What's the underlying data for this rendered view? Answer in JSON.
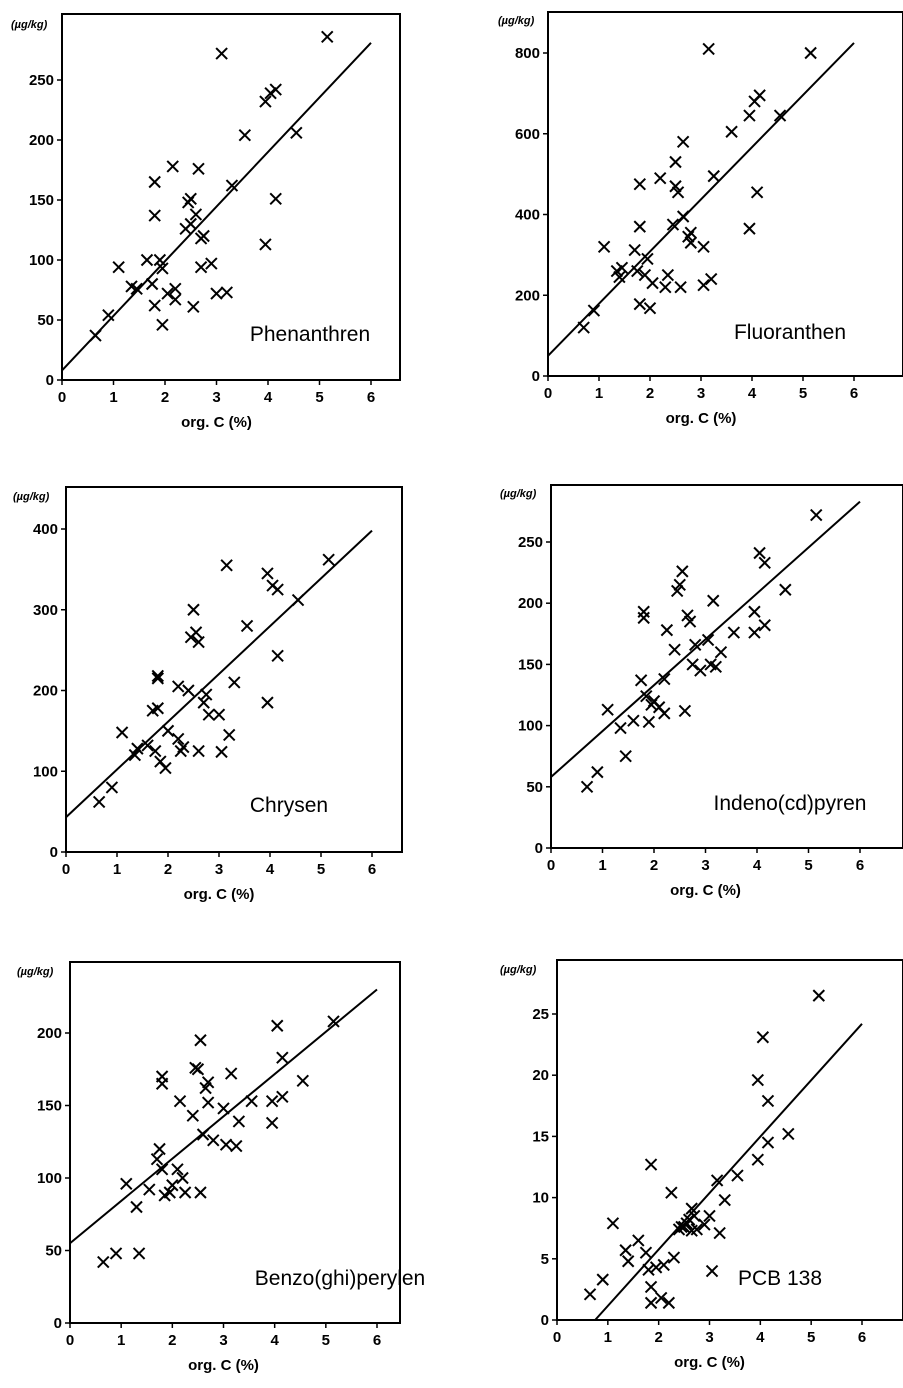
{
  "chart_data": [
    {
      "type": "scatter",
      "title": "Phenanthren",
      "unit": "(µg/kg)",
      "xlabel": "org. C (%)",
      "xticks": [
        0,
        1,
        2,
        3,
        4,
        5,
        6
      ],
      "yticks": [
        0,
        50,
        100,
        150,
        200,
        250
      ],
      "xlim": [
        0,
        7
      ],
      "ylim": [
        0,
        290
      ],
      "trend_line": {
        "x": [
          0,
          6
        ],
        "y": [
          8,
          281
        ]
      },
      "points": [
        [
          0.65,
          37
        ],
        [
          0.9,
          54
        ],
        [
          1.1,
          94
        ],
        [
          1.35,
          78
        ],
        [
          1.45,
          76
        ],
        [
          1.65,
          100
        ],
        [
          1.8,
          165
        ],
        [
          1.8,
          137
        ],
        [
          1.75,
          80
        ],
        [
          1.8,
          62
        ],
        [
          1.9,
          100
        ],
        [
          1.95,
          93
        ],
        [
          1.95,
          46
        ],
        [
          2.05,
          72
        ],
        [
          2.15,
          178
        ],
        [
          2.2,
          76
        ],
        [
          2.2,
          67
        ],
        [
          2.4,
          126
        ],
        [
          2.45,
          148
        ],
        [
          2.5,
          151
        ],
        [
          2.5,
          130
        ],
        [
          2.55,
          61
        ],
        [
          2.6,
          138
        ],
        [
          2.65,
          176
        ],
        [
          2.7,
          118
        ],
        [
          2.7,
          94
        ],
        [
          2.75,
          120
        ],
        [
          2.9,
          97
        ],
        [
          3.0,
          72
        ],
        [
          3.1,
          272
        ],
        [
          3.2,
          73
        ],
        [
          3.3,
          162
        ],
        [
          3.55,
          204
        ],
        [
          3.95,
          113
        ],
        [
          3.95,
          232
        ],
        [
          4.05,
          239
        ],
        [
          4.15,
          242
        ],
        [
          4.15,
          151
        ],
        [
          4.55,
          206
        ],
        [
          5.15,
          286
        ]
      ]
    },
    {
      "type": "scatter",
      "title": "Fluoranthen",
      "unit": "(µg/kg)",
      "xlabel": "org. C (%)",
      "xticks": [
        0,
        1,
        2,
        3,
        4,
        5,
        6
      ],
      "yticks": [
        0,
        200,
        400,
        600,
        800
      ],
      "xlim": [
        0,
        7
      ],
      "ylim": [
        0,
        880
      ],
      "trend_line": {
        "x": [
          0,
          6
        ],
        "y": [
          50,
          825
        ]
      },
      "points": [
        [
          0.7,
          120
        ],
        [
          0.9,
          162
        ],
        [
          1.1,
          320
        ],
        [
          1.35,
          260
        ],
        [
          1.4,
          245
        ],
        [
          1.45,
          268
        ],
        [
          1.7,
          312
        ],
        [
          1.75,
          260
        ],
        [
          1.8,
          475
        ],
        [
          1.8,
          370
        ],
        [
          1.8,
          178
        ],
        [
          1.9,
          250
        ],
        [
          1.95,
          290
        ],
        [
          2.0,
          168
        ],
        [
          2.05,
          230
        ],
        [
          2.2,
          490
        ],
        [
          2.3,
          220
        ],
        [
          2.35,
          250
        ],
        [
          2.45,
          375
        ],
        [
          2.5,
          470
        ],
        [
          2.5,
          530
        ],
        [
          2.55,
          455
        ],
        [
          2.6,
          220
        ],
        [
          2.65,
          580
        ],
        [
          2.65,
          395
        ],
        [
          2.75,
          345
        ],
        [
          2.8,
          330
        ],
        [
          2.8,
          355
        ],
        [
          3.05,
          320
        ],
        [
          3.05,
          225
        ],
        [
          3.15,
          810
        ],
        [
          3.2,
          240
        ],
        [
          3.25,
          495
        ],
        [
          3.6,
          605
        ],
        [
          3.95,
          365
        ],
        [
          3.95,
          645
        ],
        [
          4.05,
          680
        ],
        [
          4.15,
          695
        ],
        [
          4.1,
          455
        ],
        [
          4.55,
          645
        ],
        [
          5.15,
          800
        ]
      ]
    },
    {
      "type": "scatter",
      "title": "Chrysen",
      "unit": "(µg/kg)",
      "xlabel": "org. C (%)",
      "xticks": [
        0,
        1,
        2,
        3,
        4,
        5,
        6
      ],
      "yticks": [
        0,
        100,
        200,
        300,
        400
      ],
      "xlim": [
        0,
        7
      ],
      "ylim": [
        0,
        440
      ],
      "trend_line": {
        "x": [
          0,
          6
        ],
        "y": [
          43,
          398
        ]
      },
      "points": [
        [
          0.65,
          62
        ],
        [
          0.9,
          80
        ],
        [
          1.1,
          148
        ],
        [
          1.35,
          120
        ],
        [
          1.4,
          128
        ],
        [
          1.6,
          132
        ],
        [
          1.7,
          175
        ],
        [
          1.8,
          178
        ],
        [
          1.8,
          218
        ],
        [
          1.8,
          215
        ],
        [
          1.75,
          125
        ],
        [
          1.85,
          112
        ],
        [
          1.95,
          104
        ],
        [
          2.0,
          150
        ],
        [
          2.2,
          205
        ],
        [
          2.2,
          140
        ],
        [
          2.25,
          125
        ],
        [
          2.3,
          130
        ],
        [
          2.4,
          200
        ],
        [
          2.45,
          266
        ],
        [
          2.5,
          300
        ],
        [
          2.55,
          272
        ],
        [
          2.6,
          125
        ],
        [
          2.6,
          260
        ],
        [
          2.7,
          185
        ],
        [
          2.75,
          195
        ],
        [
          2.8,
          170
        ],
        [
          3.0,
          170
        ],
        [
          3.05,
          124
        ],
        [
          3.15,
          355
        ],
        [
          3.2,
          145
        ],
        [
          3.3,
          210
        ],
        [
          3.55,
          280
        ],
        [
          3.95,
          185
        ],
        [
          3.95,
          345
        ],
        [
          4.05,
          330
        ],
        [
          4.15,
          325
        ],
        [
          4.15,
          243
        ],
        [
          4.55,
          312
        ],
        [
          5.15,
          362
        ]
      ]
    },
    {
      "type": "scatter",
      "title": "Indeno(cd)pyren",
      "unit": "(µg/kg)",
      "xlabel": "org. C (%)",
      "xticks": [
        0,
        1,
        2,
        3,
        4,
        5,
        6
      ],
      "yticks": [
        0,
        50,
        100,
        150,
        200,
        250
      ],
      "xlim": [
        0,
        7
      ],
      "ylim": [
        0,
        290
      ],
      "trend_line": {
        "x": [
          0,
          6
        ],
        "y": [
          58,
          283
        ]
      },
      "points": [
        [
          0.7,
          50
        ],
        [
          0.9,
          62
        ],
        [
          1.1,
          113
        ],
        [
          1.35,
          98
        ],
        [
          1.45,
          75
        ],
        [
          1.6,
          104
        ],
        [
          1.75,
          137
        ],
        [
          1.8,
          193
        ],
        [
          1.8,
          188
        ],
        [
          1.85,
          124
        ],
        [
          1.9,
          103
        ],
        [
          1.95,
          117
        ],
        [
          2.0,
          120
        ],
        [
          2.1,
          115
        ],
        [
          2.2,
          138
        ],
        [
          2.2,
          110
        ],
        [
          2.25,
          178
        ],
        [
          2.4,
          162
        ],
        [
          2.45,
          210
        ],
        [
          2.5,
          215
        ],
        [
          2.55,
          226
        ],
        [
          2.6,
          112
        ],
        [
          2.65,
          190
        ],
        [
          2.7,
          185
        ],
        [
          2.75,
          150
        ],
        [
          2.8,
          166
        ],
        [
          2.9,
          145
        ],
        [
          3.05,
          170
        ],
        [
          3.1,
          150
        ],
        [
          3.15,
          202
        ],
        [
          3.2,
          148
        ],
        [
          3.3,
          160
        ],
        [
          3.55,
          176
        ],
        [
          3.95,
          176
        ],
        [
          3.95,
          193
        ],
        [
          4.05,
          241
        ],
        [
          4.15,
          233
        ],
        [
          4.15,
          182
        ],
        [
          4.55,
          211
        ],
        [
          5.15,
          272
        ]
      ]
    },
    {
      "type": "scatter",
      "title": "Benzo(ghi)perylen",
      "unit": "(µg/kg)",
      "xlabel": "org. C (%)",
      "xticks": [
        0,
        1,
        2,
        3,
        4,
        5,
        6
      ],
      "yticks": [
        0,
        50,
        100,
        150,
        200
      ],
      "xlim": [
        0,
        7
      ],
      "ylim": [
        0,
        230
      ],
      "trend_line": {
        "x": [
          0,
          6
        ],
        "y": [
          55,
          230
        ]
      },
      "points": [
        [
          0.65,
          42
        ],
        [
          0.9,
          48
        ],
        [
          1.1,
          96
        ],
        [
          1.3,
          80
        ],
        [
          1.35,
          48
        ],
        [
          1.55,
          92
        ],
        [
          1.7,
          113
        ],
        [
          1.75,
          120
        ],
        [
          1.8,
          170
        ],
        [
          1.8,
          165
        ],
        [
          1.8,
          106
        ],
        [
          1.85,
          88
        ],
        [
          1.95,
          90
        ],
        [
          2.0,
          95
        ],
        [
          2.1,
          106
        ],
        [
          2.15,
          153
        ],
        [
          2.2,
          100
        ],
        [
          2.25,
          90
        ],
        [
          2.4,
          143
        ],
        [
          2.45,
          176
        ],
        [
          2.5,
          175
        ],
        [
          2.55,
          195
        ],
        [
          2.55,
          90
        ],
        [
          2.6,
          130
        ],
        [
          2.65,
          162
        ],
        [
          2.7,
          166
        ],
        [
          2.7,
          152
        ],
        [
          2.8,
          126
        ],
        [
          3.0,
          148
        ],
        [
          3.05,
          123
        ],
        [
          3.15,
          172
        ],
        [
          3.25,
          122
        ],
        [
          3.3,
          139
        ],
        [
          3.55,
          153
        ],
        [
          3.95,
          138
        ],
        [
          3.95,
          153
        ],
        [
          4.05,
          205
        ],
        [
          4.15,
          183
        ],
        [
          4.15,
          156
        ],
        [
          4.55,
          167
        ],
        [
          5.15,
          208
        ]
      ]
    },
    {
      "type": "scatter",
      "title": "PCB 138",
      "unit": "(µg/kg)",
      "xlabel": "org. C (%)",
      "xticks": [
        0,
        1,
        2,
        3,
        4,
        5,
        6
      ],
      "yticks": [
        0,
        5,
        10,
        15,
        20,
        25
      ],
      "xlim": [
        0,
        7
      ],
      "ylim": [
        0,
        28.5
      ],
      "trend_line": {
        "x": [
          0.75,
          6
        ],
        "y": [
          0,
          24.2
        ]
      },
      "points": [
        [
          0.65,
          2.1
        ],
        [
          0.9,
          3.3
        ],
        [
          1.1,
          7.9
        ],
        [
          1.35,
          5.7
        ],
        [
          1.4,
          4.8
        ],
        [
          1.6,
          6.5
        ],
        [
          1.75,
          5.5
        ],
        [
          1.8,
          4.1
        ],
        [
          1.85,
          12.7
        ],
        [
          1.85,
          2.7
        ],
        [
          1.85,
          1.4
        ],
        [
          1.95,
          4.3
        ],
        [
          2.05,
          1.8
        ],
        [
          2.1,
          4.5
        ],
        [
          2.2,
          1.4
        ],
        [
          2.25,
          10.4
        ],
        [
          2.3,
          5.1
        ],
        [
          2.4,
          7.4
        ],
        [
          2.45,
          7.6
        ],
        [
          2.5,
          7.6
        ],
        [
          2.55,
          7.9
        ],
        [
          2.6,
          8.2
        ],
        [
          2.65,
          9.1
        ],
        [
          2.65,
          7.3
        ],
        [
          2.7,
          8.5
        ],
        [
          2.75,
          7.4
        ],
        [
          2.9,
          7.8
        ],
        [
          3.0,
          8.5
        ],
        [
          3.05,
          4.0
        ],
        [
          3.15,
          11.4
        ],
        [
          3.2,
          7.1
        ],
        [
          3.3,
          9.8
        ],
        [
          3.55,
          11.8
        ],
        [
          3.95,
          13.1
        ],
        [
          3.95,
          19.6
        ],
        [
          4.05,
          23.1
        ],
        [
          4.15,
          14.5
        ],
        [
          4.15,
          17.9
        ],
        [
          4.55,
          15.2
        ],
        [
          5.15,
          26.5
        ]
      ]
    }
  ]
}
